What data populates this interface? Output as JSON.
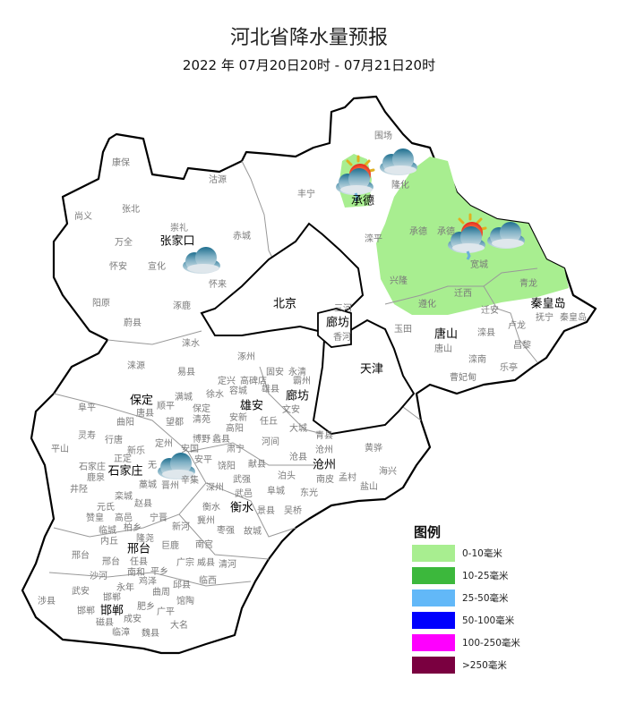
{
  "header": {
    "title": "河北省降水量预报",
    "subtitle": "2022 年 07月20日20时 - 07月21日20时"
  },
  "legend": {
    "title": "图例",
    "items": [
      {
        "label": "0-10毫米",
        "color": "#a8ee90"
      },
      {
        "label": "10-25毫米",
        "color": "#3cb83c"
      },
      {
        "label": "25-50毫米",
        "color": "#62b8f8"
      },
      {
        "label": "50-100毫米",
        "color": "#0000fe"
      },
      {
        "label": "100-250毫米",
        "color": "#fe00fe"
      },
      {
        "label": ">250毫米",
        "color": "#7a0040"
      }
    ]
  },
  "map": {
    "rain_area_color": "#a8ee90",
    "weather_icons": [
      "cloudy-icon",
      "sun-cloud-rain-icon",
      "cloudy-icon",
      "sun-cloud-rain-icon",
      "cloudy-icon",
      "cloudy-icon"
    ],
    "cities": [
      "张家口",
      "北京",
      "承德",
      "廊坊",
      "秦皇岛",
      "唐山",
      "天津",
      "保定",
      "雄安",
      "廊坊",
      "沧州",
      "石家庄",
      "衡水",
      "邢台",
      "邯郸"
    ],
    "counties": [
      "康保",
      "沽源",
      "丰宁",
      "张北",
      "尚义",
      "崇礼",
      "赤城",
      "万全",
      "怀安",
      "宣化",
      "怀来",
      "阳原",
      "涿鹿",
      "蔚县",
      "涞水",
      "围场",
      "隆化",
      "滦平",
      "承德",
      "承德",
      "宽城",
      "兴隆",
      "迁西",
      "遵化",
      "青龙",
      "迁安",
      "抚宁",
      "秦皇岛",
      "三河",
      "香河",
      "玉田",
      "唐山",
      "滦县",
      "卢龙",
      "昌黎",
      "滦南",
      "乐亭",
      "曹妃甸",
      "涞源",
      "易县",
      "涿州",
      "固安",
      "永清",
      "定兴",
      "高碑店",
      "霸州",
      "容城",
      "雄县",
      "满城",
      "徐水",
      "阜平",
      "顺平",
      "唐县",
      "保定",
      "安新",
      "文安",
      "曲阳",
      "望都",
      "清苑",
      "高阳",
      "任丘",
      "大城",
      "灵寿",
      "行唐",
      "定州",
      "安国",
      "博野",
      "蠡县",
      "肃宁",
      "河间",
      "青县",
      "平山",
      "新乐",
      "沧县",
      "沧州",
      "正定",
      "石家庄",
      "无",
      "安平",
      "饶阳",
      "献县",
      "鹿泉",
      "藁城",
      "晋州",
      "辛集",
      "深州",
      "武强",
      "泊头",
      "井陉",
      "栾城",
      "武邑",
      "阜城",
      "东光",
      "南皮",
      "元氏",
      "赵县",
      "衡水",
      "景县",
      "吴桥",
      "黄骅",
      "孟村",
      "海兴",
      "盐山",
      "赞皇",
      "高邑",
      "宁晋",
      "冀州",
      "枣强",
      "故城",
      "临城",
      "柏乡",
      "新河",
      "内丘",
      "隆尧",
      "巨鹿",
      "南宫",
      "邢台",
      "邢台",
      "任县",
      "广宗",
      "威县",
      "清河",
      "南和",
      "平乡",
      "沙河",
      "鸡泽",
      "邱县",
      "临西",
      "武安",
      "永年",
      "曲周",
      "邯郸",
      "涉县",
      "馆陶",
      "肥乡",
      "邯郸",
      "广平",
      "磁县",
      "成安",
      "大名",
      "临漳",
      "魏县"
    ]
  }
}
